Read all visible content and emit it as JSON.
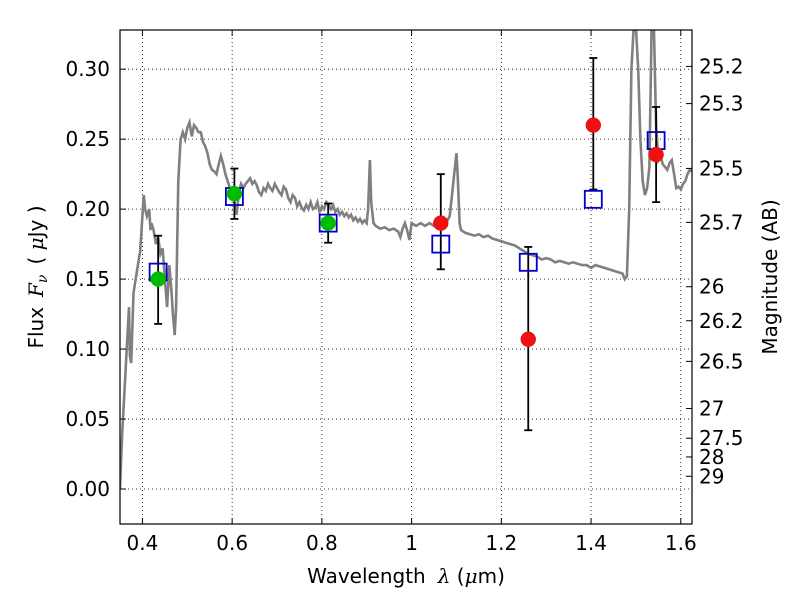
{
  "chart_data": {
    "type": "scatter",
    "xlabel": {
      "prefix": "Wavelength",
      "symbol": "λ",
      "unit_open": " (",
      "unit_mu": "μ",
      "unit_rest": "m)"
    },
    "ylabel": {
      "prefix": "Flux",
      "symbol_main": "F",
      "symbol_sub": "ν",
      "unit_open": "( ",
      "unit_mu": "μ",
      "unit_rest": "Jy )"
    },
    "ylabel_right": "Magnitude (AB)",
    "xlim": [
      0.35,
      1.625
    ],
    "ylim": [
      -0.025,
      0.328
    ],
    "grid": true,
    "x_ticks": [
      {
        "value": 0.4,
        "label": "0.4"
      },
      {
        "value": 0.6,
        "label": "0.6"
      },
      {
        "value": 0.8,
        "label": "0.8"
      },
      {
        "value": 1.0,
        "label": "1"
      },
      {
        "value": 1.2,
        "label": "1.2"
      },
      {
        "value": 1.4,
        "label": "1.4"
      },
      {
        "value": 1.6,
        "label": "1.6"
      }
    ],
    "y_ticks": [
      {
        "value": 0.0,
        "label": "0.00"
      },
      {
        "value": 0.05,
        "label": "0.05"
      },
      {
        "value": 0.1,
        "label": "0.10"
      },
      {
        "value": 0.15,
        "label": "0.15"
      },
      {
        "value": 0.2,
        "label": "0.20"
      },
      {
        "value": 0.25,
        "label": "0.25"
      },
      {
        "value": 0.3,
        "label": "0.30"
      }
    ],
    "mag_ticks": [
      {
        "value": 25.2,
        "label": "25.2"
      },
      {
        "value": 25.3,
        "label": "25.3"
      },
      {
        "value": 25.5,
        "label": "25.5"
      },
      {
        "value": 25.7,
        "label": "25.7"
      },
      {
        "value": 26.0,
        "label": "26"
      },
      {
        "value": 26.2,
        "label": "26.2"
      },
      {
        "value": 26.5,
        "label": "26.5"
      },
      {
        "value": 27.0,
        "label": "27"
      },
      {
        "value": 27.5,
        "label": "27.5"
      },
      {
        "value": 28.0,
        "label": "28"
      },
      {
        "value": 29.0,
        "label": "29"
      }
    ],
    "spectrum": {
      "color": "#808080",
      "points": [
        [
          0.35,
          0.0
        ],
        [
          0.355,
          0.04
        ],
        [
          0.36,
          0.07
        ],
        [
          0.365,
          0.1
        ],
        [
          0.37,
          0.13
        ],
        [
          0.372,
          0.095
        ],
        [
          0.375,
          0.09
        ],
        [
          0.38,
          0.14
        ],
        [
          0.385,
          0.15
        ],
        [
          0.39,
          0.16
        ],
        [
          0.395,
          0.17
        ],
        [
          0.4,
          0.195
        ],
        [
          0.403,
          0.21
        ],
        [
          0.406,
          0.2
        ],
        [
          0.41,
          0.195
        ],
        [
          0.415,
          0.2
        ],
        [
          0.418,
          0.185
        ],
        [
          0.42,
          0.19
        ],
        [
          0.425,
          0.185
        ],
        [
          0.43,
          0.175
        ],
        [
          0.435,
          0.18
        ],
        [
          0.44,
          0.168
        ],
        [
          0.445,
          0.172
        ],
        [
          0.45,
          0.15
        ],
        [
          0.455,
          0.13
        ],
        [
          0.46,
          0.16
        ],
        [
          0.465,
          0.14
        ],
        [
          0.468,
          0.125
        ],
        [
          0.472,
          0.11
        ],
        [
          0.475,
          0.13
        ],
        [
          0.48,
          0.22
        ],
        [
          0.485,
          0.25
        ],
        [
          0.49,
          0.255
        ],
        [
          0.495,
          0.25
        ],
        [
          0.5,
          0.258
        ],
        [
          0.505,
          0.262
        ],
        [
          0.51,
          0.252
        ],
        [
          0.515,
          0.26
        ],
        [
          0.52,
          0.258
        ],
        [
          0.525,
          0.255
        ],
        [
          0.53,
          0.255
        ],
        [
          0.535,
          0.248
        ],
        [
          0.54,
          0.245
        ],
        [
          0.545,
          0.24
        ],
        [
          0.55,
          0.232
        ],
        [
          0.555,
          0.228
        ],
        [
          0.56,
          0.227
        ],
        [
          0.565,
          0.225
        ],
        [
          0.57,
          0.232
        ],
        [
          0.575,
          0.238
        ],
        [
          0.58,
          0.232
        ],
        [
          0.585,
          0.225
        ],
        [
          0.59,
          0.22
        ],
        [
          0.595,
          0.215
        ],
        [
          0.6,
          0.213
        ],
        [
          0.605,
          0.205
        ],
        [
          0.61,
          0.196
        ],
        [
          0.615,
          0.212
        ],
        [
          0.62,
          0.218
        ],
        [
          0.625,
          0.215
        ],
        [
          0.63,
          0.218
        ],
        [
          0.635,
          0.22
        ],
        [
          0.64,
          0.222
        ],
        [
          0.645,
          0.218
        ],
        [
          0.65,
          0.22
        ],
        [
          0.655,
          0.217
        ],
        [
          0.66,
          0.212
        ],
        [
          0.665,
          0.21
        ],
        [
          0.67,
          0.215
        ],
        [
          0.675,
          0.213
        ],
        [
          0.68,
          0.218
        ],
        [
          0.685,
          0.215
        ],
        [
          0.69,
          0.213
        ],
        [
          0.695,
          0.218
        ],
        [
          0.7,
          0.215
        ],
        [
          0.705,
          0.212
        ],
        [
          0.71,
          0.21
        ],
        [
          0.715,
          0.216
        ],
        [
          0.72,
          0.214
        ],
        [
          0.725,
          0.208
        ],
        [
          0.73,
          0.205
        ],
        [
          0.735,
          0.21
        ],
        [
          0.74,
          0.208
        ],
        [
          0.745,
          0.202
        ],
        [
          0.75,
          0.205
        ],
        [
          0.755,
          0.201
        ],
        [
          0.76,
          0.199
        ],
        [
          0.765,
          0.203
        ],
        [
          0.77,
          0.2
        ],
        [
          0.775,
          0.205
        ],
        [
          0.78,
          0.2
        ],
        [
          0.785,
          0.201
        ],
        [
          0.79,
          0.205
        ],
        [
          0.795,
          0.198
        ],
        [
          0.8,
          0.202
        ],
        [
          0.805,
          0.2
        ],
        [
          0.81,
          0.205
        ],
        [
          0.815,
          0.203
        ],
        [
          0.82,
          0.2
        ],
        [
          0.825,
          0.203
        ],
        [
          0.83,
          0.198
        ],
        [
          0.835,
          0.2
        ],
        [
          0.84,
          0.196
        ],
        [
          0.845,
          0.198
        ],
        [
          0.85,
          0.195
        ],
        [
          0.855,
          0.197
        ],
        [
          0.86,
          0.194
        ],
        [
          0.865,
          0.196
        ],
        [
          0.87,
          0.192
        ],
        [
          0.875,
          0.194
        ],
        [
          0.88,
          0.191
        ],
        [
          0.885,
          0.193
        ],
        [
          0.89,
          0.19
        ],
        [
          0.895,
          0.192
        ],
        [
          0.9,
          0.19
        ],
        [
          0.903,
          0.2
        ],
        [
          0.907,
          0.235
        ],
        [
          0.91,
          0.205
        ],
        [
          0.915,
          0.19
        ],
        [
          0.92,
          0.188
        ],
        [
          0.93,
          0.186
        ],
        [
          0.94,
          0.187
        ],
        [
          0.95,
          0.185
        ],
        [
          0.96,
          0.186
        ],
        [
          0.97,
          0.184
        ],
        [
          0.975,
          0.18
        ],
        [
          0.98,
          0.186
        ],
        [
          0.985,
          0.19
        ],
        [
          0.99,
          0.185
        ],
        [
          0.995,
          0.178
        ],
        [
          1.0,
          0.19
        ],
        [
          1.01,
          0.188
        ],
        [
          1.02,
          0.19
        ],
        [
          1.03,
          0.188
        ],
        [
          1.04,
          0.19
        ],
        [
          1.05,
          0.188
        ],
        [
          1.06,
          0.189
        ],
        [
          1.065,
          0.188
        ],
        [
          1.07,
          0.19
        ],
        [
          1.08,
          0.192
        ],
        [
          1.085,
          0.195
        ],
        [
          1.09,
          0.21
        ],
        [
          1.095,
          0.225
        ],
        [
          1.1,
          0.24
        ],
        [
          1.103,
          0.222
        ],
        [
          1.107,
          0.19
        ],
        [
          1.11,
          0.185
        ],
        [
          1.12,
          0.183
        ],
        [
          1.13,
          0.182
        ],
        [
          1.14,
          0.181
        ],
        [
          1.15,
          0.182
        ],
        [
          1.16,
          0.18
        ],
        [
          1.17,
          0.181
        ],
        [
          1.18,
          0.179
        ],
        [
          1.19,
          0.178
        ],
        [
          1.2,
          0.177
        ],
        [
          1.21,
          0.176
        ],
        [
          1.22,
          0.175
        ],
        [
          1.23,
          0.174
        ],
        [
          1.24,
          0.172
        ],
        [
          1.25,
          0.17
        ],
        [
          1.26,
          0.168
        ],
        [
          1.27,
          0.167
        ],
        [
          1.28,
          0.166
        ],
        [
          1.29,
          0.164
        ],
        [
          1.3,
          0.165
        ],
        [
          1.31,
          0.164
        ],
        [
          1.32,
          0.162
        ],
        [
          1.33,
          0.163
        ],
        [
          1.34,
          0.162
        ],
        [
          1.35,
          0.161
        ],
        [
          1.36,
          0.162
        ],
        [
          1.37,
          0.161
        ],
        [
          1.38,
          0.16
        ],
        [
          1.39,
          0.16
        ],
        [
          1.4,
          0.158
        ],
        [
          1.41,
          0.16
        ],
        [
          1.42,
          0.159
        ],
        [
          1.43,
          0.158
        ],
        [
          1.44,
          0.157
        ],
        [
          1.45,
          0.156
        ],
        [
          1.46,
          0.155
        ],
        [
          1.47,
          0.154
        ],
        [
          1.475,
          0.15
        ],
        [
          1.48,
          0.152
        ],
        [
          1.485,
          0.2
        ],
        [
          1.49,
          0.3
        ],
        [
          1.495,
          0.33
        ],
        [
          1.5,
          0.33
        ],
        [
          1.505,
          0.3
        ],
        [
          1.51,
          0.25
        ],
        [
          1.515,
          0.22
        ],
        [
          1.52,
          0.21
        ],
        [
          1.525,
          0.215
        ],
        [
          1.53,
          0.23
        ],
        [
          1.535,
          0.33
        ],
        [
          1.54,
          0.33
        ],
        [
          1.545,
          0.26
        ],
        [
          1.55,
          0.235
        ],
        [
          1.555,
          0.238
        ],
        [
          1.56,
          0.232
        ],
        [
          1.565,
          0.23
        ],
        [
          1.57,
          0.228
        ],
        [
          1.575,
          0.233
        ],
        [
          1.58,
          0.235
        ],
        [
          1.585,
          0.225
        ],
        [
          1.59,
          0.215
        ],
        [
          1.595,
          0.216
        ],
        [
          1.6,
          0.214
        ],
        [
          1.605,
          0.218
        ],
        [
          1.61,
          0.22
        ],
        [
          1.615,
          0.225
        ],
        [
          1.62,
          0.228
        ],
        [
          1.625,
          0.227
        ]
      ]
    },
    "model_points": {
      "name": "model",
      "color": "#0000cc",
      "points": [
        [
          0.435,
          0.155
        ],
        [
          0.605,
          0.209
        ],
        [
          0.814,
          0.19
        ],
        [
          1.065,
          0.175
        ],
        [
          1.26,
          0.162
        ],
        [
          1.405,
          0.207
        ],
        [
          1.545,
          0.249
        ]
      ]
    },
    "observed": [
      {
        "x": 0.435,
        "y": 0.15,
        "err": [
          0.118,
          0.181
        ],
        "color": "#00bb00"
      },
      {
        "x": 0.605,
        "y": 0.211,
        "err": [
          0.193,
          0.229
        ],
        "color": "#00bb00"
      },
      {
        "x": 0.814,
        "y": 0.19,
        "err": [
          0.176,
          0.204
        ],
        "color": "#00bb00"
      },
      {
        "x": 1.065,
        "y": 0.19,
        "err": [
          0.157,
          0.225
        ],
        "color": "#ee1111"
      },
      {
        "x": 1.26,
        "y": 0.107,
        "err": [
          0.042,
          0.173
        ],
        "color": "#ee1111"
      },
      {
        "x": 1.405,
        "y": 0.26,
        "err": [
          0.214,
          0.308
        ],
        "color": "#ee1111"
      },
      {
        "x": 1.545,
        "y": 0.239,
        "err": [
          0.205,
          0.273
        ],
        "color": "#ee1111"
      }
    ]
  }
}
